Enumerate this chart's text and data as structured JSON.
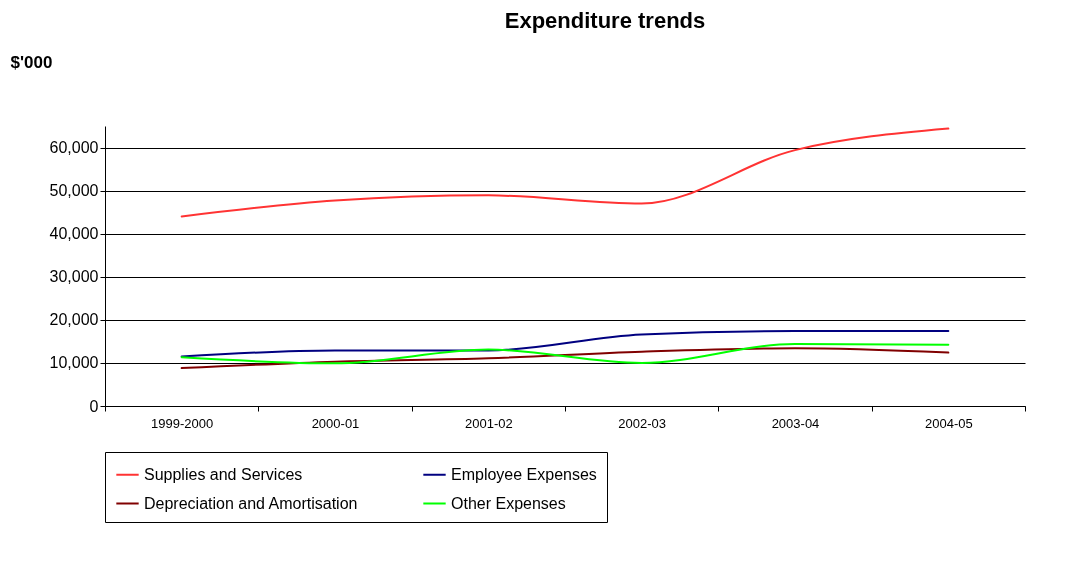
{
  "chart_data": {
    "type": "line",
    "title": "Expenditure trends",
    "ylabel": "$'000",
    "categories": [
      "1999-2000",
      "2000-01",
      "2001-02",
      "2002-03",
      "2003-04",
      "2004-05"
    ],
    "series": [
      {
        "name": "Supplies and Services",
        "color": "#ff3333",
        "values": [
          44000,
          47700,
          48900,
          47000,
          59400,
          64400
        ]
      },
      {
        "name": "Employee Expenses",
        "color": "#000080",
        "values": [
          11500,
          12900,
          12900,
          16600,
          17400,
          17400
        ]
      },
      {
        "name": "Depreciation and Amortisation",
        "color": "#800000",
        "values": [
          8800,
          10300,
          11100,
          12600,
          13400,
          12400
        ]
      },
      {
        "name": "Other Expenses",
        "color": "#00ff00",
        "values": [
          11300,
          9900,
          13100,
          10000,
          14400,
          14200
        ]
      }
    ],
    "ylim": [
      0,
      65000
    ],
    "yticks": [
      {
        "value": 0,
        "label": "0"
      },
      {
        "value": 10000,
        "label": "10,000"
      },
      {
        "value": 20000,
        "label": "20,000"
      },
      {
        "value": 30000,
        "label": "30,000"
      },
      {
        "value": 40000,
        "label": "40,000"
      },
      {
        "value": 50000,
        "label": "50,000"
      },
      {
        "value": 60000,
        "label": "60,000"
      }
    ],
    "grid": "y",
    "legend": "bottom",
    "marker": "none",
    "line_style": "solid"
  }
}
